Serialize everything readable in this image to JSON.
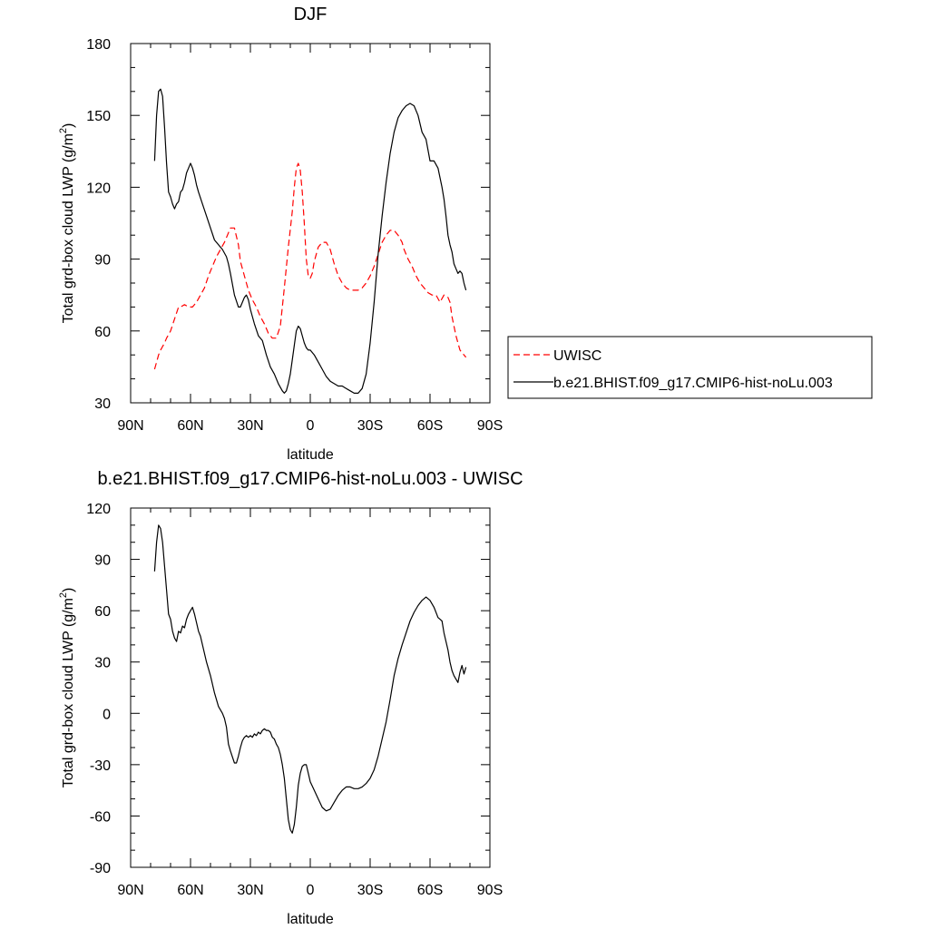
{
  "chart_data": [
    {
      "type": "line",
      "title": "DJF",
      "xlabel": "latitude",
      "ylabel_main": "Total grd-box cloud LWP (g/m",
      "ylabel_sup": "2",
      "ylabel_tail": ")",
      "xlim": [
        90,
        -90
      ],
      "ylim": [
        30,
        180
      ],
      "x_ticks": [
        90,
        60,
        30,
        0,
        -30,
        -60,
        -90
      ],
      "x_tick_labels": [
        "90N",
        "60N",
        "30N",
        "0",
        "30S",
        "60S",
        "90S"
      ],
      "y_ticks": [
        30,
        60,
        90,
        120,
        150,
        180
      ],
      "y_tick_labels": [
        "30",
        "60",
        "90",
        "120",
        "150",
        "180"
      ],
      "legend": {
        "position": "right",
        "entries": [
          "UWISC",
          "b.e21.BHIST.f09_g17.CMIP6-hist-noLu.003"
        ]
      },
      "series": [
        {
          "name": "UWISC",
          "color": "#ff0000",
          "dash": "dashed",
          "x": [
            78,
            76,
            75,
            73,
            72,
            70,
            68,
            66,
            65,
            63,
            61,
            59,
            57,
            55,
            53,
            51,
            49,
            47,
            45,
            43,
            41,
            40,
            38,
            36,
            35,
            33,
            31,
            29,
            27,
            25,
            23,
            21,
            19,
            17,
            15,
            13,
            11,
            9,
            8,
            7,
            6,
            5,
            4,
            3,
            2,
            1,
            0,
            -1,
            -2,
            -4,
            -6,
            -8,
            -10,
            -12,
            -14,
            -16,
            -18,
            -20,
            -22,
            -24,
            -26,
            -28,
            -30,
            -32,
            -34,
            -36,
            -38,
            -40,
            -42,
            -44,
            -46,
            -47,
            -49,
            -51,
            -53,
            -55,
            -57,
            -59,
            -61,
            -63,
            -65,
            -67,
            -69,
            -70,
            -71,
            -72,
            -73,
            -74,
            -75,
            -77,
            -78
          ],
          "y": [
            44,
            50,
            52,
            55,
            57,
            60,
            65,
            70,
            70,
            71,
            70,
            70,
            72,
            75,
            78,
            83,
            87,
            91,
            94,
            97,
            101,
            103,
            103,
            96,
            89,
            83,
            77,
            73,
            70,
            66,
            63,
            59,
            57,
            57,
            62,
            78,
            95,
            110,
            120,
            128,
            130,
            127,
            118,
            105,
            90,
            83,
            82,
            84,
            89,
            95,
            97,
            97,
            94,
            88,
            83,
            80,
            78,
            77,
            77,
            77,
            78,
            80,
            83,
            87,
            92,
            97,
            100,
            102,
            102,
            100,
            97,
            94,
            90,
            87,
            83,
            80,
            78,
            76,
            75,
            75,
            72,
            75,
            74,
            72,
            66,
            62,
            58,
            55,
            52,
            50,
            49
          ]
        },
        {
          "name": "b.e21.BHIST.f09_g17.CMIP6-hist-noLu.003",
          "color": "#000000",
          "dash": "solid",
          "x": [
            78,
            77,
            76,
            75,
            74,
            73,
            72,
            71,
            70,
            69,
            68,
            67,
            66,
            65,
            64,
            63,
            62,
            61,
            60,
            59,
            58,
            57,
            56,
            54,
            52,
            50,
            48,
            46,
            44,
            42,
            41,
            40,
            38,
            36,
            35,
            34,
            33,
            32,
            31,
            30,
            29,
            28,
            26,
            24,
            22,
            20,
            18,
            16,
            14,
            13,
            12,
            11,
            10,
            9,
            8,
            7,
            6,
            5,
            4,
            3,
            2,
            1,
            0,
            -2,
            -4,
            -6,
            -8,
            -10,
            -12,
            -14,
            -16,
            -18,
            -20,
            -22,
            -24,
            -26,
            -28,
            -30,
            -32,
            -34,
            -36,
            -38,
            -40,
            -42,
            -44,
            -46,
            -48,
            -50,
            -52,
            -54,
            -56,
            -58,
            -60,
            -62,
            -64,
            -66,
            -67,
            -68,
            -69,
            -70,
            -71,
            -72,
            -73,
            -74,
            -75,
            -76,
            -77,
            -78
          ],
          "y": [
            131,
            150,
            160,
            161,
            158,
            145,
            130,
            118,
            116,
            113,
            111,
            113,
            114,
            118,
            119,
            122,
            126,
            128,
            130,
            128,
            125,
            121,
            118,
            113,
            108,
            103,
            98,
            96,
            94,
            91,
            88,
            84,
            75,
            70,
            70,
            72,
            74,
            75,
            73,
            69,
            66,
            63,
            58,
            56,
            50,
            45,
            42,
            38,
            35,
            34,
            35,
            38,
            42,
            48,
            54,
            60,
            62,
            61,
            58,
            55,
            53,
            52,
            52,
            50,
            47,
            44,
            41,
            39,
            38,
            37,
            37,
            36,
            35,
            34,
            34,
            36,
            42,
            55,
            72,
            92,
            108,
            122,
            134,
            143,
            149,
            152,
            154,
            155,
            154,
            150,
            143,
            140,
            131,
            131,
            128,
            120,
            115,
            108,
            100,
            96,
            93,
            88,
            86,
            84,
            85,
            84,
            80,
            77
          ]
        }
      ]
    },
    {
      "type": "line",
      "title": "b.e21.BHIST.f09_g17.CMIP6-hist-noLu.003 - UWISC",
      "xlabel": "latitude",
      "ylabel_main": "Total grd-box cloud LWP (g/m",
      "ylabel_sup": "2",
      "ylabel_tail": ")",
      "xlim": [
        90,
        -90
      ],
      "ylim": [
        -90,
        120
      ],
      "x_ticks": [
        90,
        60,
        30,
        0,
        -30,
        -60,
        -90
      ],
      "x_tick_labels": [
        "90N",
        "60N",
        "30N",
        "0",
        "30S",
        "60S",
        "90S"
      ],
      "y_ticks": [
        -90,
        -60,
        -30,
        0,
        30,
        60,
        90,
        120
      ],
      "y_tick_labels": [
        "-90",
        "-60",
        "-30",
        "0",
        "30",
        "60",
        "90",
        "120"
      ],
      "series": [
        {
          "color": "#000000",
          "dash": "solid",
          "x": [
            78,
            77,
            76,
            75,
            74,
            73,
            72,
            71,
            70,
            69,
            68,
            67,
            66,
            65,
            64,
            63,
            62,
            61,
            60,
            59,
            58,
            57,
            56,
            55,
            54,
            52,
            50,
            48,
            46,
            44,
            43,
            42,
            41,
            40,
            38,
            37,
            36,
            35,
            34,
            33,
            32,
            31,
            30,
            29,
            28,
            27,
            26,
            25,
            24,
            23,
            22,
            21,
            20,
            19,
            18,
            17,
            16,
            15,
            14,
            13,
            12,
            11,
            10,
            9,
            8,
            7,
            6,
            5,
            4,
            3,
            2,
            1,
            0,
            -2,
            -4,
            -6,
            -8,
            -10,
            -12,
            -14,
            -16,
            -18,
            -20,
            -22,
            -24,
            -26,
            -28,
            -30,
            -32,
            -34,
            -36,
            -38,
            -40,
            -42,
            -44,
            -46,
            -48,
            -50,
            -52,
            -54,
            -56,
            -58,
            -60,
            -62,
            -64,
            -65,
            -66,
            -67,
            -68,
            -69,
            -70,
            -71,
            -72,
            -73,
            -74,
            -75,
            -76,
            -77,
            -78
          ],
          "y": [
            83,
            100,
            110,
            108,
            100,
            86,
            72,
            58,
            55,
            48,
            44,
            42,
            48,
            47,
            51,
            50,
            55,
            58,
            60,
            62,
            58,
            53,
            48,
            45,
            40,
            30,
            22,
            12,
            4,
            0,
            -3,
            -8,
            -18,
            -22,
            -29,
            -29,
            -25,
            -20,
            -16,
            -14,
            -13,
            -14,
            -13,
            -14,
            -12,
            -13,
            -11,
            -12,
            -10,
            -9,
            -10,
            -10,
            -11,
            -14,
            -15,
            -18,
            -20,
            -24,
            -30,
            -38,
            -50,
            -62,
            -68,
            -70,
            -65,
            -55,
            -42,
            -35,
            -31,
            -30,
            -30,
            -35,
            -40,
            -45,
            -50,
            -55,
            -57,
            -56,
            -52,
            -48,
            -45,
            -43,
            -43,
            -44,
            -44,
            -43,
            -41,
            -38,
            -33,
            -25,
            -15,
            -5,
            8,
            22,
            32,
            40,
            47,
            54,
            59,
            63,
            66,
            68,
            66,
            62,
            56,
            55,
            54,
            47,
            42,
            37,
            30,
            25,
            22,
            20,
            18,
            24,
            28,
            23,
            27
          ]
        }
      ]
    }
  ]
}
